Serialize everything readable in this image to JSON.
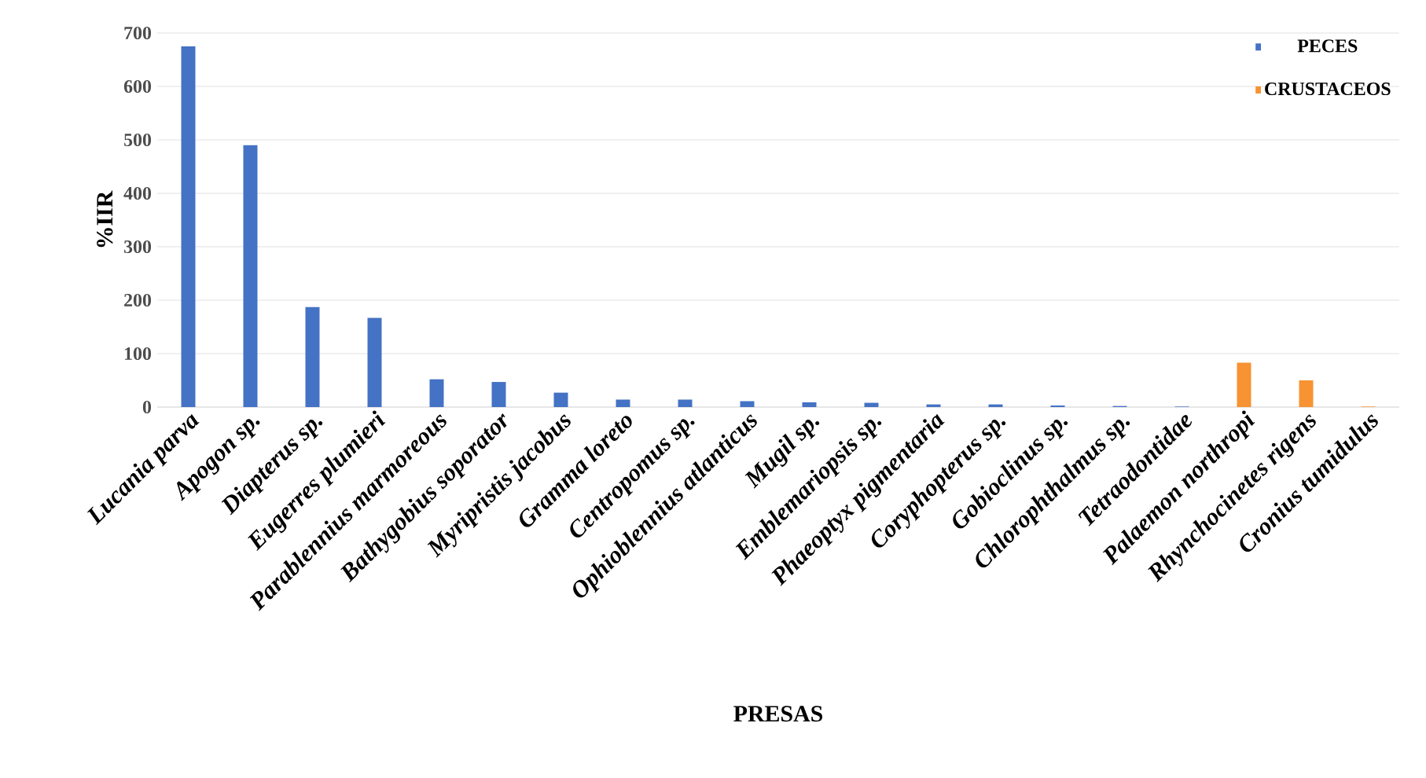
{
  "chart_data": {
    "type": "bar",
    "xlabel": "PRESAS",
    "ylabel": "%IIR",
    "categories": [
      "Lucania parva",
      "Apogon sp.",
      "Diapterus sp.",
      "Eugerres plumieri",
      "Parablennius marmoreous",
      "Bathygobius soporator",
      "Myripristis jacobus",
      "Gramma loreto",
      "Centropomus sp.",
      "Ophioblennius atlanticus",
      "Mugil sp.",
      "Emblemariopsis sp.",
      "Phaeoptyx pigmentaria",
      "Coryphopterus sp.",
      "Gobioclinus sp.",
      "Chlorophthalmus sp.",
      "Tetraodontidae",
      "Palaemon northropi",
      "Rhynchocinetes rigens",
      "Cronius tumidulus"
    ],
    "series": [
      {
        "name": "PECES",
        "color": "#4472c4",
        "values": [
          675,
          490,
          187,
          167,
          52,
          47,
          27,
          14,
          14,
          11,
          9,
          8,
          5,
          5,
          3,
          2,
          1,
          null,
          null,
          null
        ]
      },
      {
        "name": "CRUSTACEOS",
        "color": "#f79332",
        "values": [
          null,
          null,
          null,
          null,
          null,
          null,
          null,
          null,
          null,
          null,
          null,
          null,
          null,
          null,
          null,
          null,
          null,
          83,
          50,
          1
        ]
      }
    ],
    "ylim": [
      0,
      700
    ],
    "yticks": [
      0,
      100,
      200,
      300,
      400,
      500,
      600,
      700
    ],
    "grid": "y",
    "legend": "top right"
  }
}
